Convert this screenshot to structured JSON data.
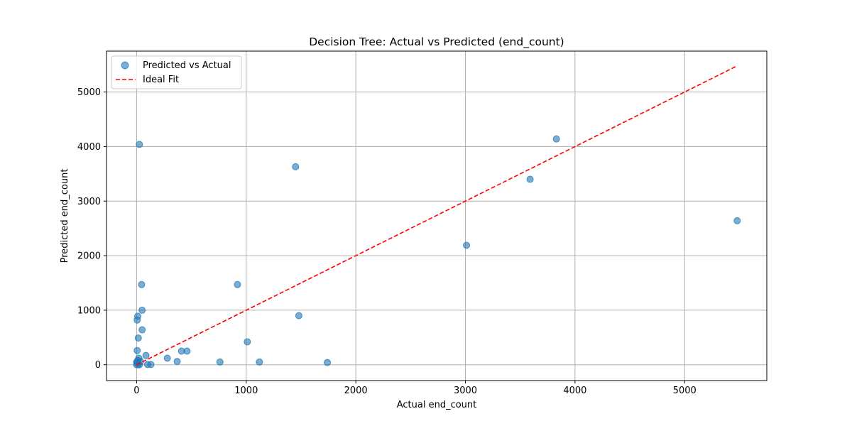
{
  "chart_data": {
    "type": "scatter",
    "title": "Decision Tree: Actual vs Predicted (end_count)",
    "xlabel": "Actual end_count",
    "ylabel": "Predicted end_count",
    "xlim": [
      -275,
      5750
    ],
    "ylim": [
      -290,
      5750
    ],
    "xticks": [
      0,
      1000,
      2000,
      3000,
      4000,
      5000
    ],
    "yticks": [
      0,
      1000,
      2000,
      3000,
      4000,
      5000
    ],
    "grid": true,
    "legend_position": "top-left",
    "legend": [
      "Predicted vs Actual",
      "Ideal Fit"
    ],
    "series": [
      {
        "name": "Predicted vs Actual",
        "color": "#1f77b4",
        "points": [
          [
            25,
            4040
          ],
          [
            45,
            1470
          ],
          [
            50,
            1000
          ],
          [
            50,
            640
          ],
          [
            10,
            890
          ],
          [
            5,
            820
          ],
          [
            15,
            490
          ],
          [
            5,
            260
          ],
          [
            85,
            170
          ],
          [
            20,
            120
          ],
          [
            10,
            80
          ],
          [
            0,
            50
          ],
          [
            5,
            30
          ],
          [
            15,
            10
          ],
          [
            25,
            0
          ],
          [
            0,
            0
          ],
          [
            35,
            60
          ],
          [
            100,
            5
          ],
          [
            130,
            5
          ],
          [
            280,
            120
          ],
          [
            370,
            60
          ],
          [
            410,
            250
          ],
          [
            460,
            250
          ],
          [
            760,
            50
          ],
          [
            920,
            1470
          ],
          [
            1010,
            420
          ],
          [
            1120,
            50
          ],
          [
            1450,
            3630
          ],
          [
            1480,
            900
          ],
          [
            1740,
            40
          ],
          [
            3010,
            2190
          ],
          [
            3590,
            3400
          ],
          [
            3830,
            4140
          ],
          [
            5480,
            2640
          ]
        ]
      },
      {
        "name": "Ideal Fit",
        "color": "#ff0000",
        "style": "dashed",
        "line": [
          [
            0,
            0
          ],
          [
            5480,
            5480
          ]
        ]
      }
    ]
  }
}
